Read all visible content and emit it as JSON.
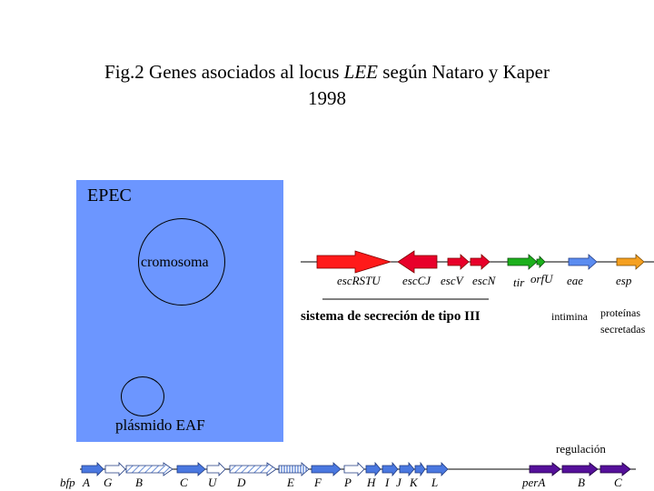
{
  "title": {
    "prefix": "Fig.2   Genes asociados al locus ",
    "locus": "LEE",
    "suffix": " según Nataro y Kaper",
    "year": "1998"
  },
  "epec": {
    "label": "EPEC",
    "chromosome_label": "cromosoma",
    "plasmid_label": "plásmido EAF"
  },
  "lee_locus": {
    "genes": [
      "escRSTU",
      "escCJ",
      "escV",
      "escN",
      "tir",
      "orfU",
      "eae",
      "esp"
    ],
    "system_label": "sistema de secreción de tipo III",
    "intimina_label": "intimina",
    "secreted_label_1": "proteínas",
    "secreted_label_2": "secretadas"
  },
  "plasmid_locus": {
    "prefix": "bfp",
    "genes": [
      "A",
      "G",
      "B",
      "C",
      "U",
      "D",
      "E",
      "F",
      "P",
      "H",
      "I",
      "J",
      "K",
      "L",
      "perA",
      "B",
      "C"
    ],
    "regulation_label": "regulación"
  },
  "colors": {
    "epec_box": "#6c96ff",
    "escRSTU": "#ff1a1a",
    "esc_red": "#e8002a",
    "tir": "#1cb01c",
    "eae": "#5b8cf0",
    "esp": "#f5a020",
    "bfp": "#4a78e0",
    "per": "#55109a"
  }
}
